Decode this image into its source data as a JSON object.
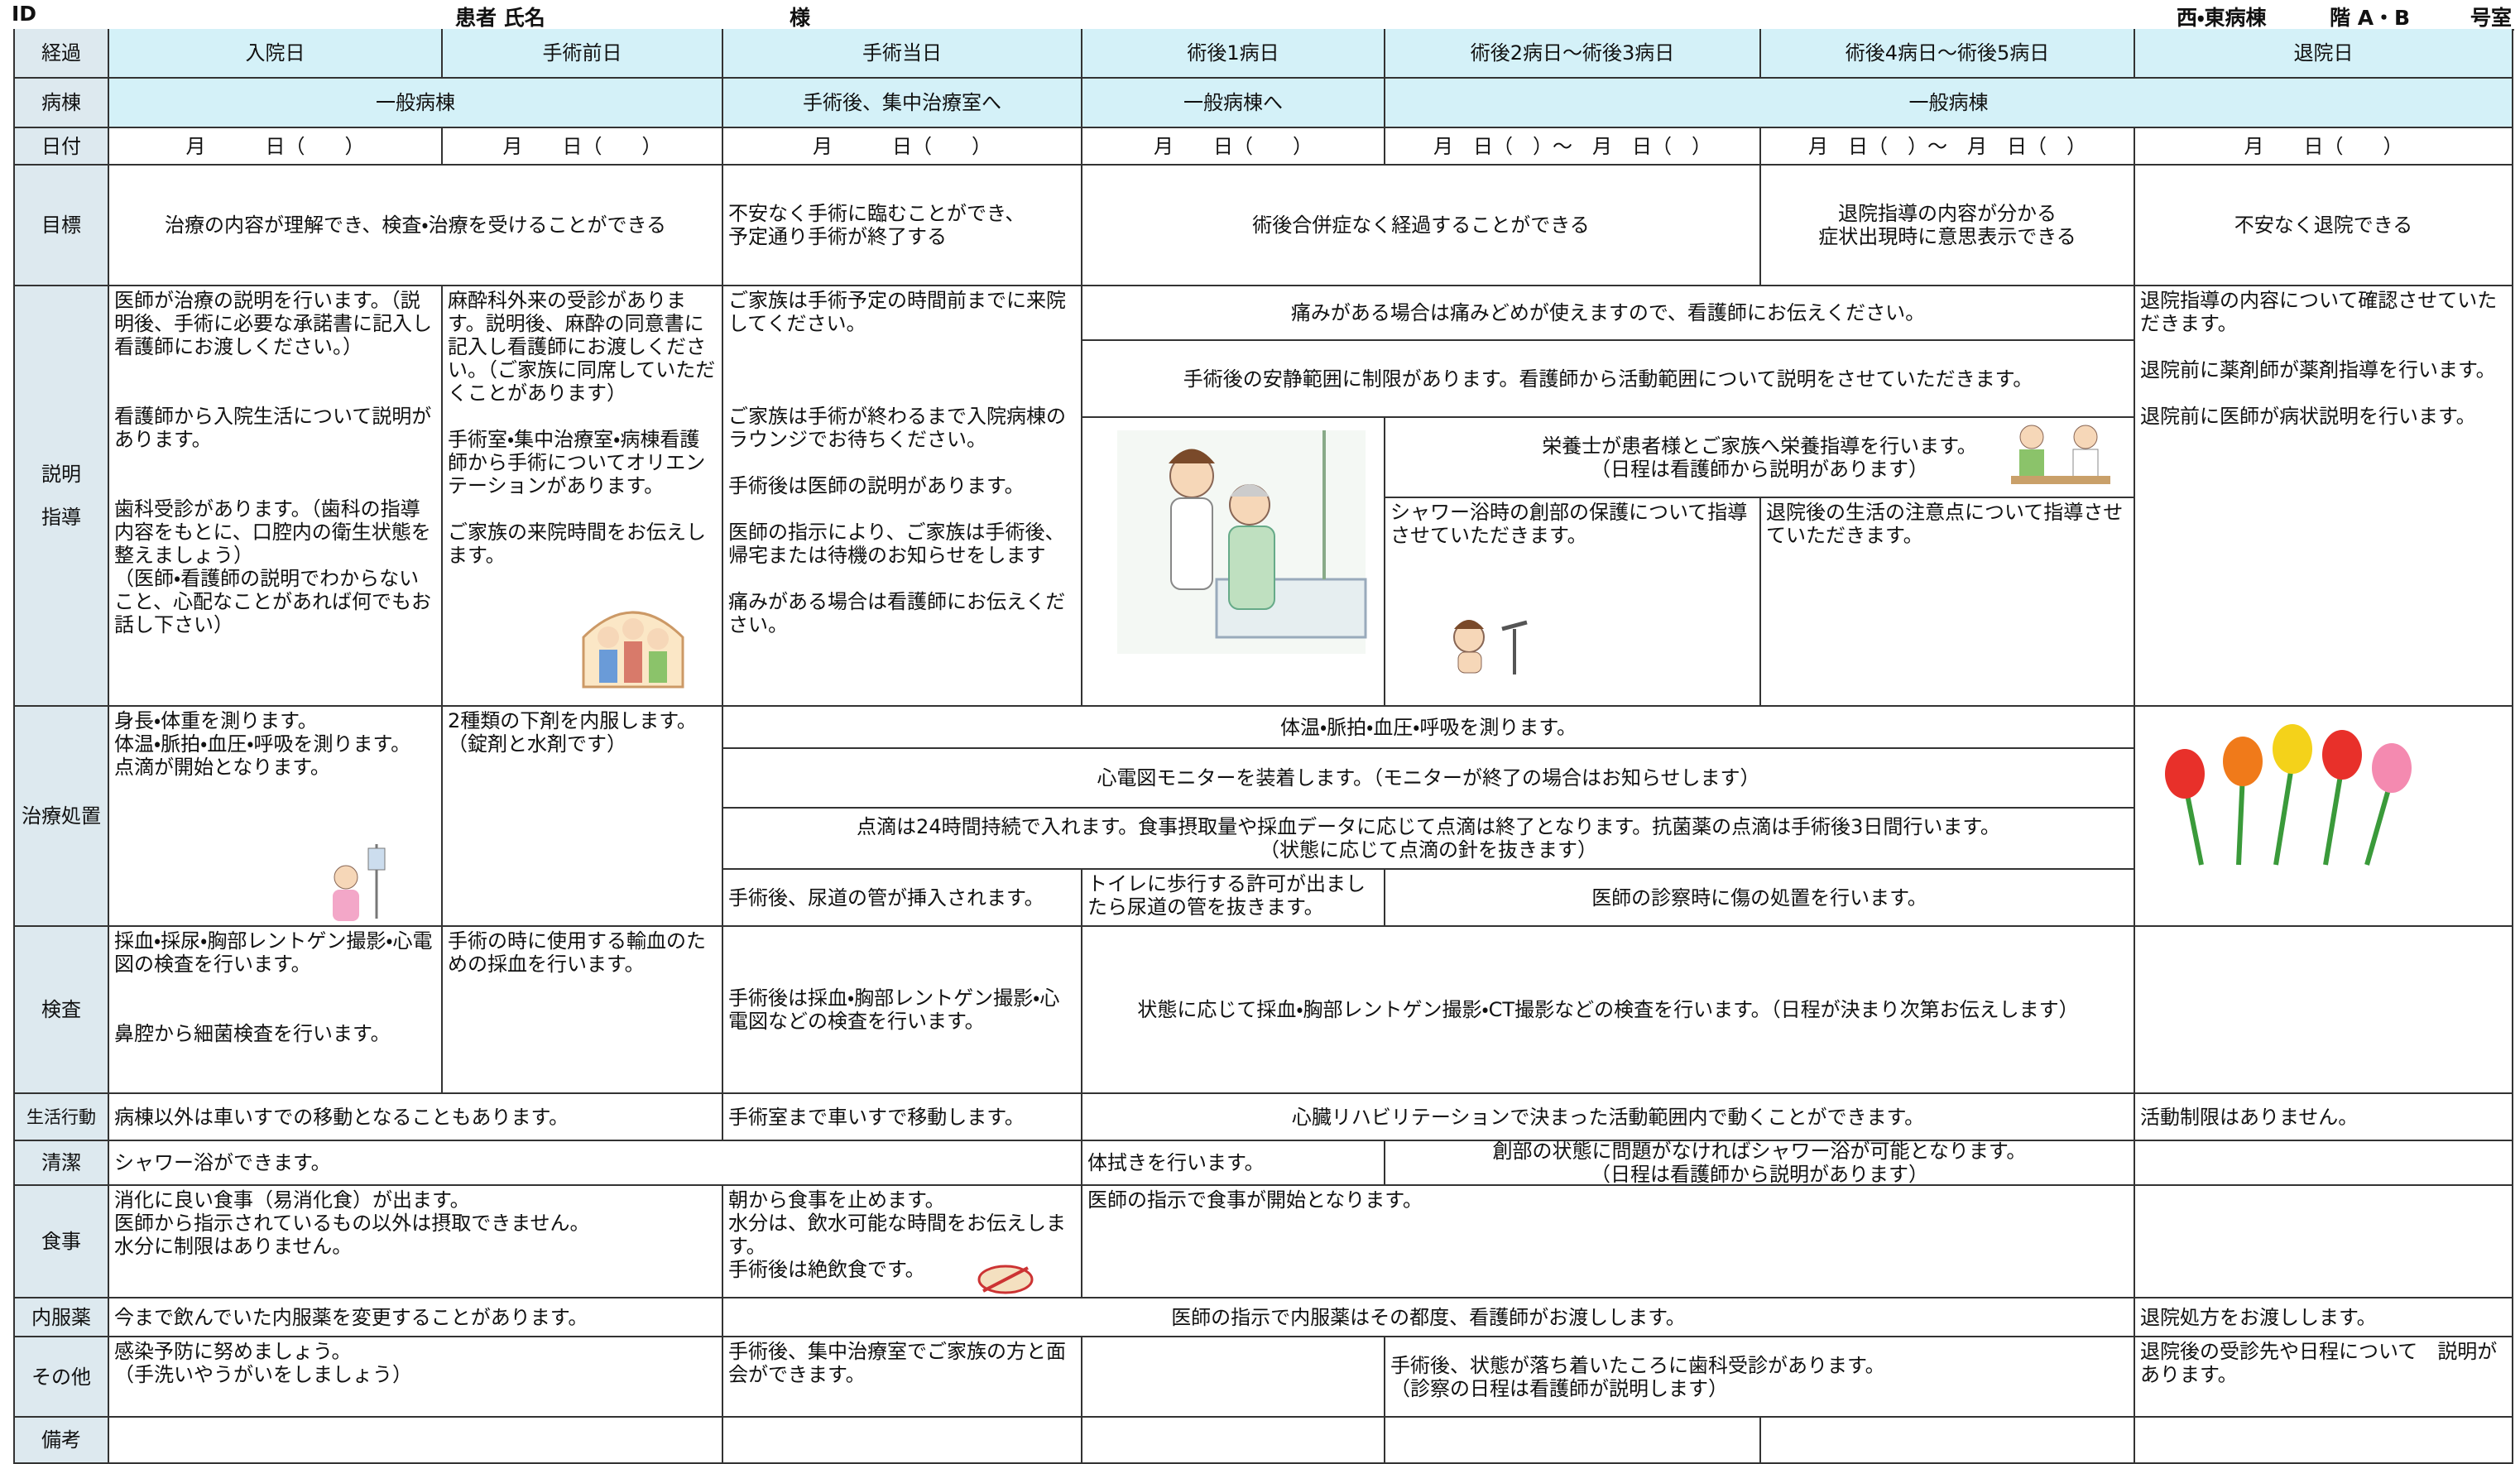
{
  "header": {
    "id": "ID",
    "patient": "患者 氏名",
    "honorific": "様",
    "ward": "西・東病棟",
    "floor": "階 A・B",
    "room": "号室"
  },
  "table": {
    "rows": [
      {
        "label": "経過",
        "cells": [
          "入院日",
          "手術前日",
          "手術当日",
          "術後1病日",
          "術後2病日～術後3病日",
          "術後4病日～術後5病日",
          "退院日"
        ]
      },
      {
        "label": "病棟",
        "cells": [
          "一般病棟",
          "手術後、集中治療室へ",
          "一般病棟へ",
          "一般病棟"
        ]
      },
      {
        "label": "日付",
        "cells": [
          "月　　　日（　　）",
          "月　　日（　　）",
          "月　　　日（　　）",
          "月　　日（　　）",
          "月　日（　）～　月　日（　）",
          "月　日（　）～　月　日（　）",
          "月　　日（　　）"
        ]
      },
      {
        "label": "目標",
        "cells": [
          "治療の内容が理解でき、検査・治療を受けることができる",
          "不安なく手術に臨むことができ、\n予定通り手術が終了する",
          "術後合併症なく経過することができる",
          "退院指導の内容が分かる\n症状出現時に意思表示できる",
          "不安なく退院できる"
        ]
      },
      {
        "label": "説明\n\n指導",
        "cells": [
          "医師が治療の説明を行います。（説明後、手術に必要な承諾書に記入し看護師にお渡しください。）\n\n\n看護師から入院生活について説明があります。\n\n\n歯科受診があります。（歯科の指導　内容をもとに、口腔内の衛生状態を整えましょう）\n（医師・看護師の説明でわからないこと、心配なことがあれば何でもお話し下さい）",
          "麻酔科外来の受診があります。説明後、麻酔の同意書に記入し看護師にお渡しください。（ご家族に同席していただくことがあります）\n\n手術室・集中治療室・病棟看護師から手術についてオリエンテーションがあります。\n\nご家族の来院時間をお伝えします。",
          "ご家族は手術予定の時間前までに来院してください。\n\n\n\nご家族は手術が終わるまで入院病棟のラウンジでお待ちください。\n\n手術後は医師の説明があります。\n\n医師の指示により、ご家族は手術後、帰宅または待機のお知らせをします\n\n痛みがある場合は看護師にお伝えください。",
          "痛みがある場合は痛みどめが使えますので、看護師にお伝えください。",
          "手術後の安静範囲に制限があります。看護師から活動範囲について説明をさせていただきます。",
          "栄養士が患者様とご家族へ栄養指導を行います。\n（日程は看護師から説明があります）",
          "シャワー浴時の創部の保護について指導させていただきます。",
          "退院後の生活の注意点について指導させていただきます。",
          "退院指導の内容について確認させていただきます。\n\n退院前に薬剤師が薬剤指導を行います。\n\n退院前に医師が病状説明を行います。"
        ]
      },
      {
        "label": "治療処置",
        "cells": [
          "身長・体重を測ります。\n体温・脈拍・血圧・呼吸を測ります。\n点滴が開始となります。",
          "2種類の下剤を内服します。（錠剤と水剤です）",
          "体温・脈拍・血圧・呼吸を測ります。",
          "心電図モニターを装着します。（モニターが終了の場合はお知らせします）",
          "点滴は24時間持続で入れます。食事摂取量や採血データに応じて点滴は終了となります。抗菌薬の点滴は手術後3日間行います。\n（状態に応じて点滴の針を抜きます）",
          "手術後、尿道の管が挿入されます。",
          "トイレに歩行する許可が出ましたら尿道の管を抜きます。",
          "医師の診察時に傷の処置を行います。"
        ]
      },
      {
        "label": "検査",
        "cells": [
          "採血・採尿・胸部レントゲン撮影・心電図の検査を行います。\n\n\n鼻腔から細菌検査を行います。",
          "手術の時に使用する輸血のための採血を行います。",
          "手術後は採血・胸部レントゲン撮影・心電図などの検査を行います。",
          "状態に応じて採血・胸部レントゲン撮影・CT撮影などの検査を行います。（日程が決まり次第お伝えします）"
        ]
      },
      {
        "label": "生活行動",
        "cells": [
          "病棟以外は車いすでの移動となることもあります。",
          "手術室まで車いすで移動します。",
          "心臓リハビリテーションで決まった活動範囲内で動くことができます。",
          "活動制限はありません。"
        ]
      },
      {
        "label": "清潔",
        "cells": [
          "シャワー浴ができます。",
          "体拭きを行います。",
          "創部の状態に問題がなければシャワー浴が可能となります。\n（日程は看護師から説明があります）"
        ]
      },
      {
        "label": "食事",
        "cells": [
          "消化に良い食事（易消化食）が出ます。\n医師から指示されているもの以外は摂取できません。\n水分に制限はありません。",
          "朝から食事を止めます。\n水分は、飲水可能な時間をお伝えします。\n手術後は絶飲食です。",
          "医師の指示で食事が開始となります。"
        ]
      },
      {
        "label": "内服薬",
        "cells": [
          "今まで飲んでいた内服薬を変更することがあります。",
          "医師の指示で内服薬はその都度、看護師がお渡しします。",
          "退院処方をお渡しします。"
        ]
      },
      {
        "label": "その他",
        "cells": [
          "感染予防に努めましょう。\n（手洗いやうがいをしましょう）",
          "手術後、集中治療室でご家族の方と面会ができます。",
          "手術後、状態が落ち着いたころに歯科受診があります。\n（診察の日程は看護師が説明します）",
          "退院後の受診先や日程について　説明があります。"
        ]
      },
      {
        "label": "備考"
      }
    ]
  }
}
